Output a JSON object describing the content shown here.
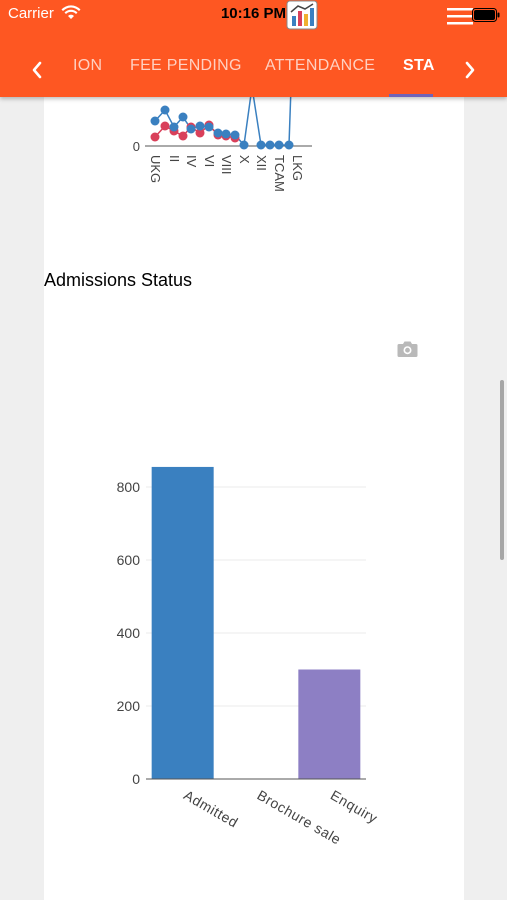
{
  "status_bar": {
    "carrier": "Carrier",
    "time": "10:16 PM"
  },
  "tabs": [
    {
      "label": "ION",
      "active": false
    },
    {
      "label": "FEE PENDING",
      "active": false
    },
    {
      "label": "ATTENDANCE",
      "active": false
    },
    {
      "label": "STA",
      "active": true
    }
  ],
  "colors": {
    "toolbar": "#fe5722",
    "bar_admitted": "#3a80c0",
    "bar_enquiry": "#8d7fc4",
    "line_blue": "#3a80c0",
    "line_red": "#d9405a",
    "tab_indicator": "#6f63b8"
  },
  "icons": {
    "back": "chevron-left-icon",
    "next": "chevron-right-icon",
    "camera": "camera-icon",
    "menu": "hamburger-menu-icon"
  },
  "section": {
    "title": "Admissions Status"
  },
  "chart_data": [
    {
      "type": "line",
      "partial": true,
      "categories": [
        "UKG",
        "II",
        "IV",
        "VI",
        "VIII",
        "X",
        "XII",
        "TCAM",
        "LKG"
      ],
      "y_ticks_visible": [
        "0"
      ],
      "series": [
        {
          "name": "",
          "color": "#3a80c0"
        },
        {
          "name": "",
          "color": "#d9405a"
        }
      ]
    },
    {
      "type": "bar",
      "title": "Admissions Status",
      "categories": [
        "Admitted",
        "Brochure sale",
        "Enquiry"
      ],
      "values": [
        855,
        0,
        300
      ],
      "y_ticks": [
        "0",
        "200",
        "400",
        "600",
        "800"
      ],
      "ylim": [
        0,
        900
      ],
      "grid": true,
      "xlabel": "",
      "ylabel": ""
    }
  ]
}
